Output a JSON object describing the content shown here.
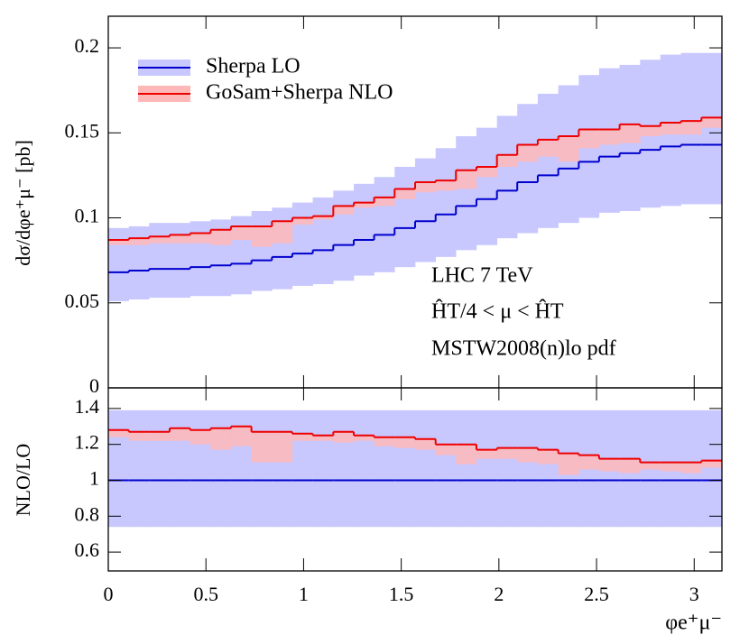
{
  "chart_data": [
    {
      "type": "histogram",
      "y_label": "dσ/dφe⁺μ⁻ [pb]",
      "annotations": [
        "LHC 7 TeV",
        "ĤT/4 < μ < ĤT",
        "MSTW2008(n)lo pdf"
      ],
      "bins": [
        0,
        0.105,
        0.209,
        0.314,
        0.419,
        0.524,
        0.628,
        0.733,
        0.838,
        0.942,
        1.047,
        1.152,
        1.257,
        1.361,
        1.466,
        1.571,
        1.676,
        1.78,
        1.885,
        1.99,
        2.094,
        2.199,
        2.304,
        2.409,
        2.513,
        2.618,
        2.723,
        2.827,
        2.932,
        3.037,
        3.142
      ],
      "xlim": [
        0,
        3.142
      ],
      "xticks": [
        0,
        0.5,
        1,
        1.5,
        2,
        2.5,
        3
      ],
      "ylim": [
        0,
        0.2186
      ],
      "yticks": [
        0,
        0.05,
        0.1,
        0.15,
        0.2
      ],
      "legend": "upper-left",
      "series": [
        {
          "name": "Sherpa LO",
          "color": "#0000cc",
          "band_color": "#c8c8ff",
          "values": [
            0.068,
            0.069,
            0.07,
            0.07,
            0.071,
            0.072,
            0.073,
            0.075,
            0.077,
            0.079,
            0.081,
            0.084,
            0.087,
            0.09,
            0.094,
            0.098,
            0.102,
            0.107,
            0.111,
            0.116,
            0.121,
            0.125,
            0.129,
            0.133,
            0.136,
            0.138,
            0.14,
            0.142,
            0.143,
            0.143
          ],
          "lower": [
            0.051,
            0.052,
            0.053,
            0.053,
            0.054,
            0.054,
            0.055,
            0.057,
            0.058,
            0.06,
            0.061,
            0.063,
            0.066,
            0.068,
            0.071,
            0.074,
            0.077,
            0.081,
            0.084,
            0.088,
            0.091,
            0.094,
            0.097,
            0.1,
            0.103,
            0.104,
            0.106,
            0.107,
            0.108,
            0.108
          ],
          "upper": [
            0.094,
            0.095,
            0.097,
            0.097,
            0.098,
            0.099,
            0.101,
            0.104,
            0.106,
            0.109,
            0.112,
            0.116,
            0.12,
            0.124,
            0.13,
            0.135,
            0.141,
            0.148,
            0.153,
            0.16,
            0.167,
            0.173,
            0.178,
            0.184,
            0.188,
            0.19,
            0.193,
            0.196,
            0.197,
            0.197
          ]
        },
        {
          "name": "GoSam+Sherpa NLO",
          "color": "#ee0000",
          "band_color": "#ffb8b8",
          "values": [
            0.087,
            0.088,
            0.089,
            0.09,
            0.091,
            0.093,
            0.095,
            0.095,
            0.098,
            0.1,
            0.101,
            0.107,
            0.109,
            0.112,
            0.117,
            0.121,
            0.122,
            0.128,
            0.13,
            0.137,
            0.143,
            0.146,
            0.148,
            0.152,
            0.152,
            0.155,
            0.154,
            0.156,
            0.157,
            0.159
          ],
          "lower": [
            0.084,
            0.084,
            0.085,
            0.085,
            0.085,
            0.084,
            0.087,
            0.083,
            0.085,
            0.096,
            0.099,
            0.102,
            0.106,
            0.107,
            0.111,
            0.115,
            0.116,
            0.117,
            0.124,
            0.13,
            0.133,
            0.136,
            0.133,
            0.141,
            0.143,
            0.144,
            0.148,
            0.149,
            0.149,
            0.153
          ],
          "upper": [
            0.087,
            0.088,
            0.089,
            0.09,
            0.091,
            0.093,
            0.095,
            0.095,
            0.098,
            0.1,
            0.101,
            0.107,
            0.109,
            0.112,
            0.117,
            0.121,
            0.122,
            0.128,
            0.13,
            0.137,
            0.143,
            0.146,
            0.148,
            0.152,
            0.152,
            0.155,
            0.154,
            0.156,
            0.157,
            0.159
          ]
        }
      ]
    },
    {
      "type": "histogram",
      "x_label": "φe⁺μ⁻",
      "y_label": "NLO/LO",
      "bins": [
        0,
        0.105,
        0.209,
        0.314,
        0.419,
        0.524,
        0.628,
        0.733,
        0.838,
        0.942,
        1.047,
        1.152,
        1.257,
        1.361,
        1.466,
        1.571,
        1.676,
        1.78,
        1.885,
        1.99,
        2.094,
        2.199,
        2.304,
        2.409,
        2.513,
        2.618,
        2.723,
        2.827,
        2.932,
        3.037,
        3.142
      ],
      "xlim": [
        0,
        3.142
      ],
      "xticks": [
        0,
        0.5,
        1,
        1.5,
        2,
        2.5,
        3
      ],
      "ylim": [
        0.495,
        1.515
      ],
      "yticks": [
        0.6,
        0.8,
        1,
        1.2,
        1.4
      ],
      "series": [
        {
          "color": "#0000cc",
          "band_color": "#c8c8ff",
          "values": [
            1,
            1,
            1,
            1,
            1,
            1,
            1,
            1,
            1,
            1,
            1,
            1,
            1,
            1,
            1,
            1,
            1,
            1,
            1,
            1,
            1,
            1,
            1,
            1,
            1,
            1,
            1,
            1,
            1,
            1
          ],
          "lower": [
            0.74,
            0.74,
            0.74,
            0.74,
            0.74,
            0.74,
            0.74,
            0.74,
            0.74,
            0.74,
            0.74,
            0.74,
            0.74,
            0.74,
            0.74,
            0.74,
            0.74,
            0.74,
            0.74,
            0.74,
            0.74,
            0.74,
            0.74,
            0.74,
            0.74,
            0.74,
            0.74,
            0.74,
            0.74,
            0.74
          ],
          "upper": [
            1.39,
            1.39,
            1.39,
            1.39,
            1.39,
            1.39,
            1.39,
            1.39,
            1.39,
            1.39,
            1.39,
            1.39,
            1.39,
            1.39,
            1.39,
            1.39,
            1.39,
            1.39,
            1.39,
            1.39,
            1.39,
            1.39,
            1.39,
            1.39,
            1.39,
            1.39,
            1.39,
            1.39,
            1.39,
            1.39
          ]
        },
        {
          "color": "#ee0000",
          "band_color": "#ffb8b8",
          "values": [
            1.28,
            1.27,
            1.27,
            1.29,
            1.28,
            1.29,
            1.3,
            1.27,
            1.27,
            1.26,
            1.25,
            1.27,
            1.25,
            1.24,
            1.24,
            1.23,
            1.2,
            1.2,
            1.17,
            1.18,
            1.18,
            1.17,
            1.15,
            1.14,
            1.12,
            1.12,
            1.1,
            1.1,
            1.1,
            1.11
          ],
          "lower": [
            1.24,
            1.22,
            1.22,
            1.22,
            1.2,
            1.17,
            1.19,
            1.1,
            1.1,
            1.22,
            1.22,
            1.21,
            1.22,
            1.19,
            1.18,
            1.17,
            1.14,
            1.09,
            1.12,
            1.12,
            1.1,
            1.09,
            1.03,
            1.06,
            1.05,
            1.04,
            1.06,
            1.05,
            1.04,
            1.07
          ],
          "upper": [
            1.28,
            1.27,
            1.27,
            1.29,
            1.28,
            1.29,
            1.3,
            1.27,
            1.27,
            1.26,
            1.25,
            1.27,
            1.25,
            1.24,
            1.24,
            1.23,
            1.2,
            1.2,
            1.17,
            1.18,
            1.18,
            1.17,
            1.15,
            1.14,
            1.12,
            1.12,
            1.1,
            1.1,
            1.1,
            1.11
          ]
        }
      ]
    }
  ]
}
